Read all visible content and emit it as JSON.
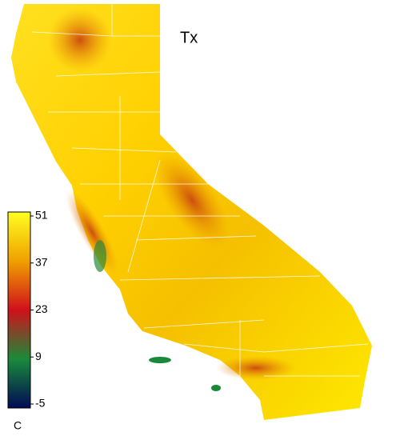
{
  "map": {
    "title": "Tx",
    "unit": "C",
    "colorbar": {
      "lim": [
        -5,
        51
      ],
      "ticks": [
        -5,
        9,
        23,
        37,
        51
      ],
      "colors": [
        "#000a55",
        "#1a8a3a",
        "#d0101a",
        "#f0a000",
        "#ffff20"
      ]
    }
  }
}
